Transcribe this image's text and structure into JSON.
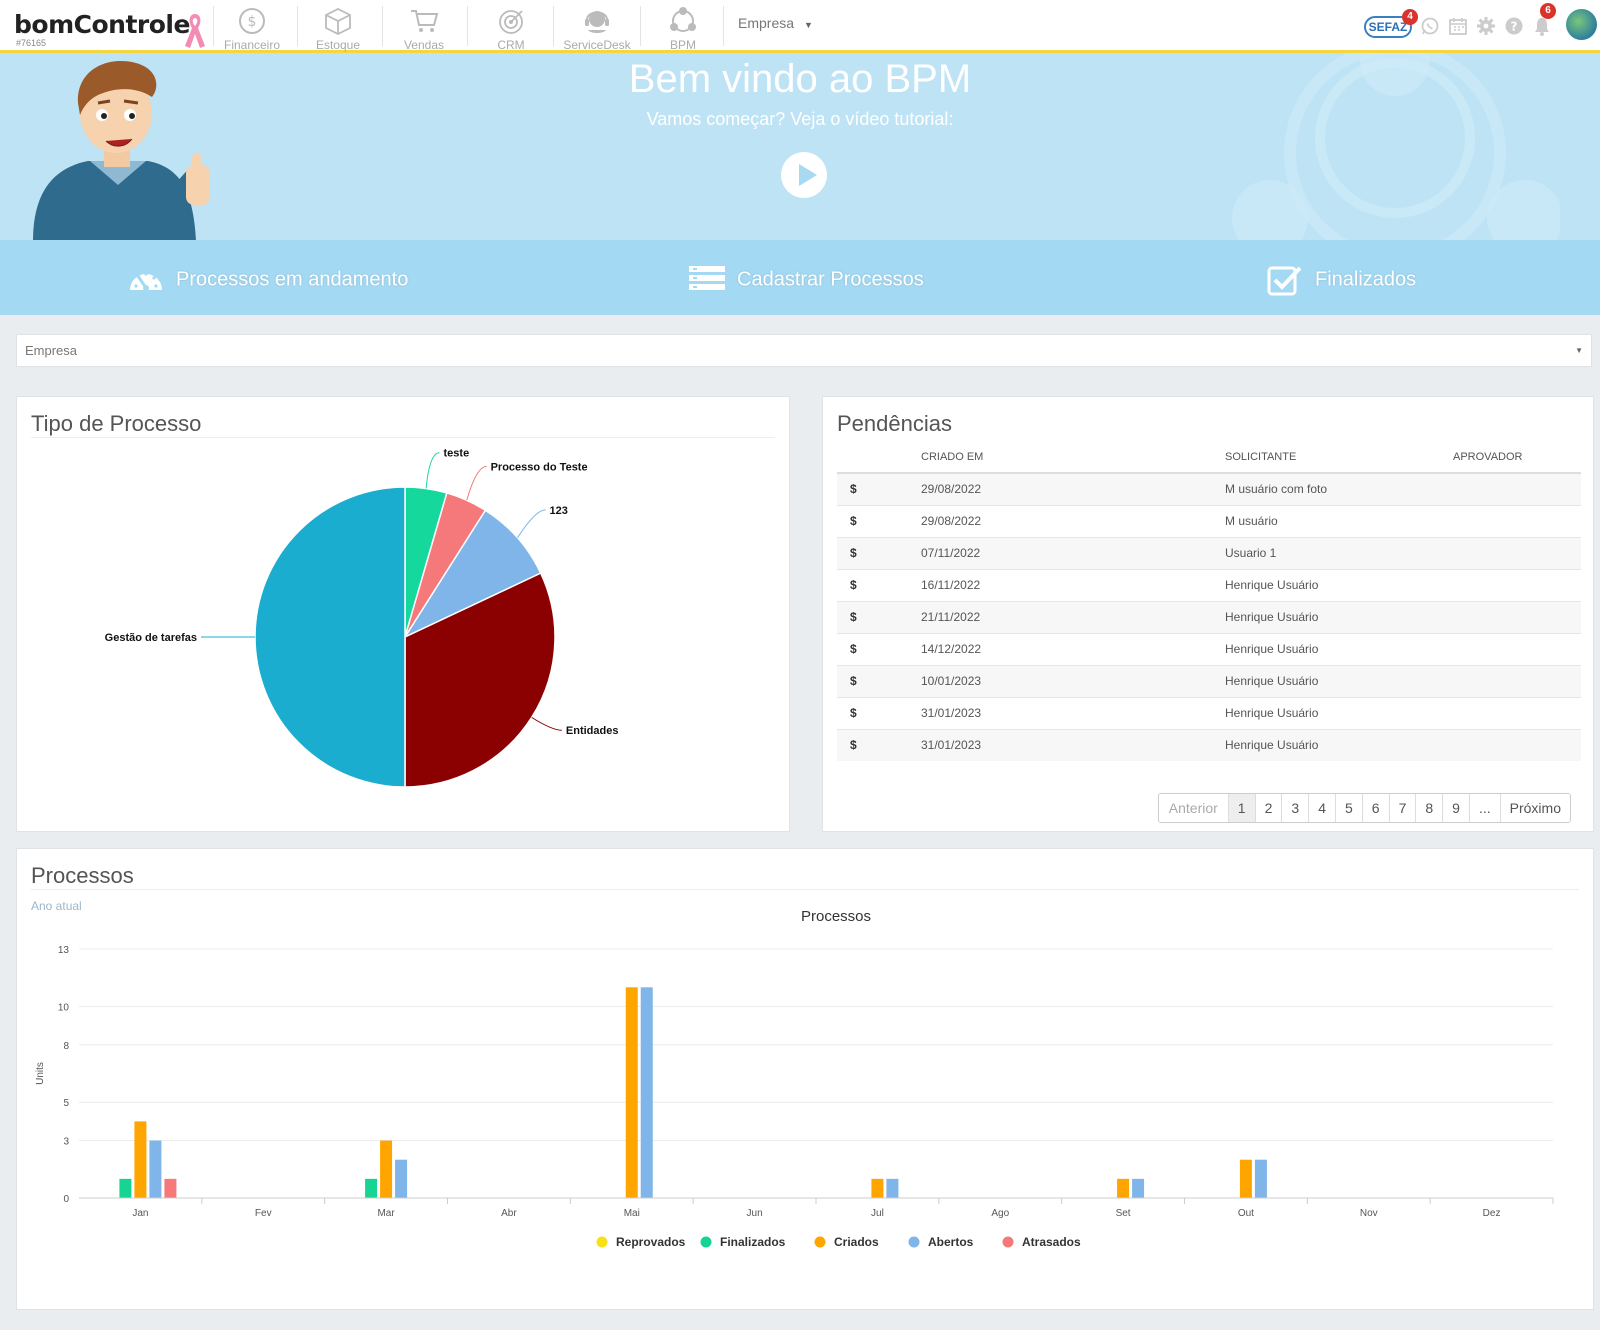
{
  "brand": {
    "name": "bomControle",
    "id": "#76165"
  },
  "nav": {
    "modules": [
      {
        "label": "Financeiro",
        "icon": "dollar-icon"
      },
      {
        "label": "Estoque",
        "icon": "box-icon"
      },
      {
        "label": "Vendas",
        "icon": "cart-icon"
      },
      {
        "label": "CRM",
        "icon": "target-icon"
      },
      {
        "label": "ServiceDesk",
        "icon": "headset-icon"
      },
      {
        "label": "BPM",
        "icon": "bpm-icon"
      }
    ],
    "company": "Empresa",
    "sefaz": "SEFAZ",
    "sefaz_badge": "4",
    "notif_badge": "6"
  },
  "hero": {
    "title_prefix": "Bem vindo ao ",
    "title_bold": "BPM",
    "subtitle": "Vamos começar? Veja o vídeo tutorial:"
  },
  "actions": [
    {
      "label": "Processos em andamento",
      "icon": "gauge-icon"
    },
    {
      "label": "Cadastrar Processos",
      "icon": "list-icon"
    },
    {
      "label": "Finalizados",
      "icon": "checkbox-icon"
    }
  ],
  "filter": {
    "placeholder": "Empresa"
  },
  "tipo": {
    "title": "Tipo de Processo",
    "chart_data": {
      "type": "pie",
      "slices": [
        {
          "label": "teste",
          "value": 4.5,
          "color": "#15d99c"
        },
        {
          "label": "Processo do Teste",
          "value": 4.5,
          "color": "#f5787a"
        },
        {
          "label": "123",
          "value": 9,
          "color": "#7fb5e8"
        },
        {
          "label": "Entidades",
          "value": 32,
          "color": "#8b0000"
        },
        {
          "label": "Gestão de tarefas",
          "value": 50,
          "color": "#1aadcf"
        }
      ]
    }
  },
  "pendencias": {
    "title": "Pendências",
    "columns": [
      "",
      "CRIADO EM",
      "SOLICITANTE",
      "APROVADOR"
    ],
    "rows": [
      {
        "icon": "$",
        "date": "29/08/2022",
        "requester": "M usuário com foto",
        "approver": ""
      },
      {
        "icon": "$",
        "date": "29/08/2022",
        "requester": "M usuário",
        "approver": ""
      },
      {
        "icon": "$",
        "date": "07/11/2022",
        "requester": "Usuario 1",
        "approver": ""
      },
      {
        "icon": "$",
        "date": "16/11/2022",
        "requester": "Henrique Usuário",
        "approver": ""
      },
      {
        "icon": "$",
        "date": "21/11/2022",
        "requester": "Henrique Usuário",
        "approver": ""
      },
      {
        "icon": "$",
        "date": "14/12/2022",
        "requester": "Henrique Usuário",
        "approver": ""
      },
      {
        "icon": "$",
        "date": "10/01/2023",
        "requester": "Henrique Usuário",
        "approver": ""
      },
      {
        "icon": "$",
        "date": "31/01/2023",
        "requester": "Henrique Usuário",
        "approver": ""
      },
      {
        "icon": "$",
        "date": "31/01/2023",
        "requester": "Henrique Usuário",
        "approver": ""
      }
    ],
    "pager": {
      "prev": "Anterior",
      "pages": [
        "1",
        "2",
        "3",
        "4",
        "5",
        "6",
        "7",
        "8",
        "9",
        "..."
      ],
      "next": "Próximo",
      "active": "1"
    }
  },
  "processos": {
    "title": "Processos",
    "subtitle": "Ano atual",
    "chart_data": {
      "type": "bar",
      "title": "Processos",
      "ylabel": "Units",
      "yticks": [
        0,
        3,
        5,
        8,
        10,
        13
      ],
      "ylim": [
        0,
        13
      ],
      "categories": [
        "Jan",
        "Fev",
        "Mar",
        "Abr",
        "Mai",
        "Jun",
        "Jul",
        "Ago",
        "Set",
        "Out",
        "Nov",
        "Dez"
      ],
      "series": [
        {
          "name": "Reprovados",
          "color": "#f7e01a",
          "values": [
            0,
            0,
            0,
            0,
            0,
            0,
            0,
            0,
            0,
            0,
            0,
            0
          ]
        },
        {
          "name": "Finalizados",
          "color": "#18d492",
          "values": [
            1,
            0,
            1,
            0,
            0,
            0,
            0,
            0,
            0,
            0,
            0,
            0
          ]
        },
        {
          "name": "Criados",
          "color": "#ffa500",
          "values": [
            4,
            0,
            3,
            0,
            11,
            0,
            1,
            0,
            1,
            2,
            0,
            0
          ]
        },
        {
          "name": "Abertos",
          "color": "#7fb5e8",
          "values": [
            3,
            0,
            2,
            0,
            11,
            0,
            1,
            0,
            1,
            2,
            0,
            0
          ]
        },
        {
          "name": "Atrasados",
          "color": "#f5787a",
          "values": [
            1,
            0,
            0,
            0,
            0,
            0,
            0,
            0,
            0,
            0,
            0,
            0
          ]
        }
      ],
      "legend_position": "bottom"
    }
  }
}
